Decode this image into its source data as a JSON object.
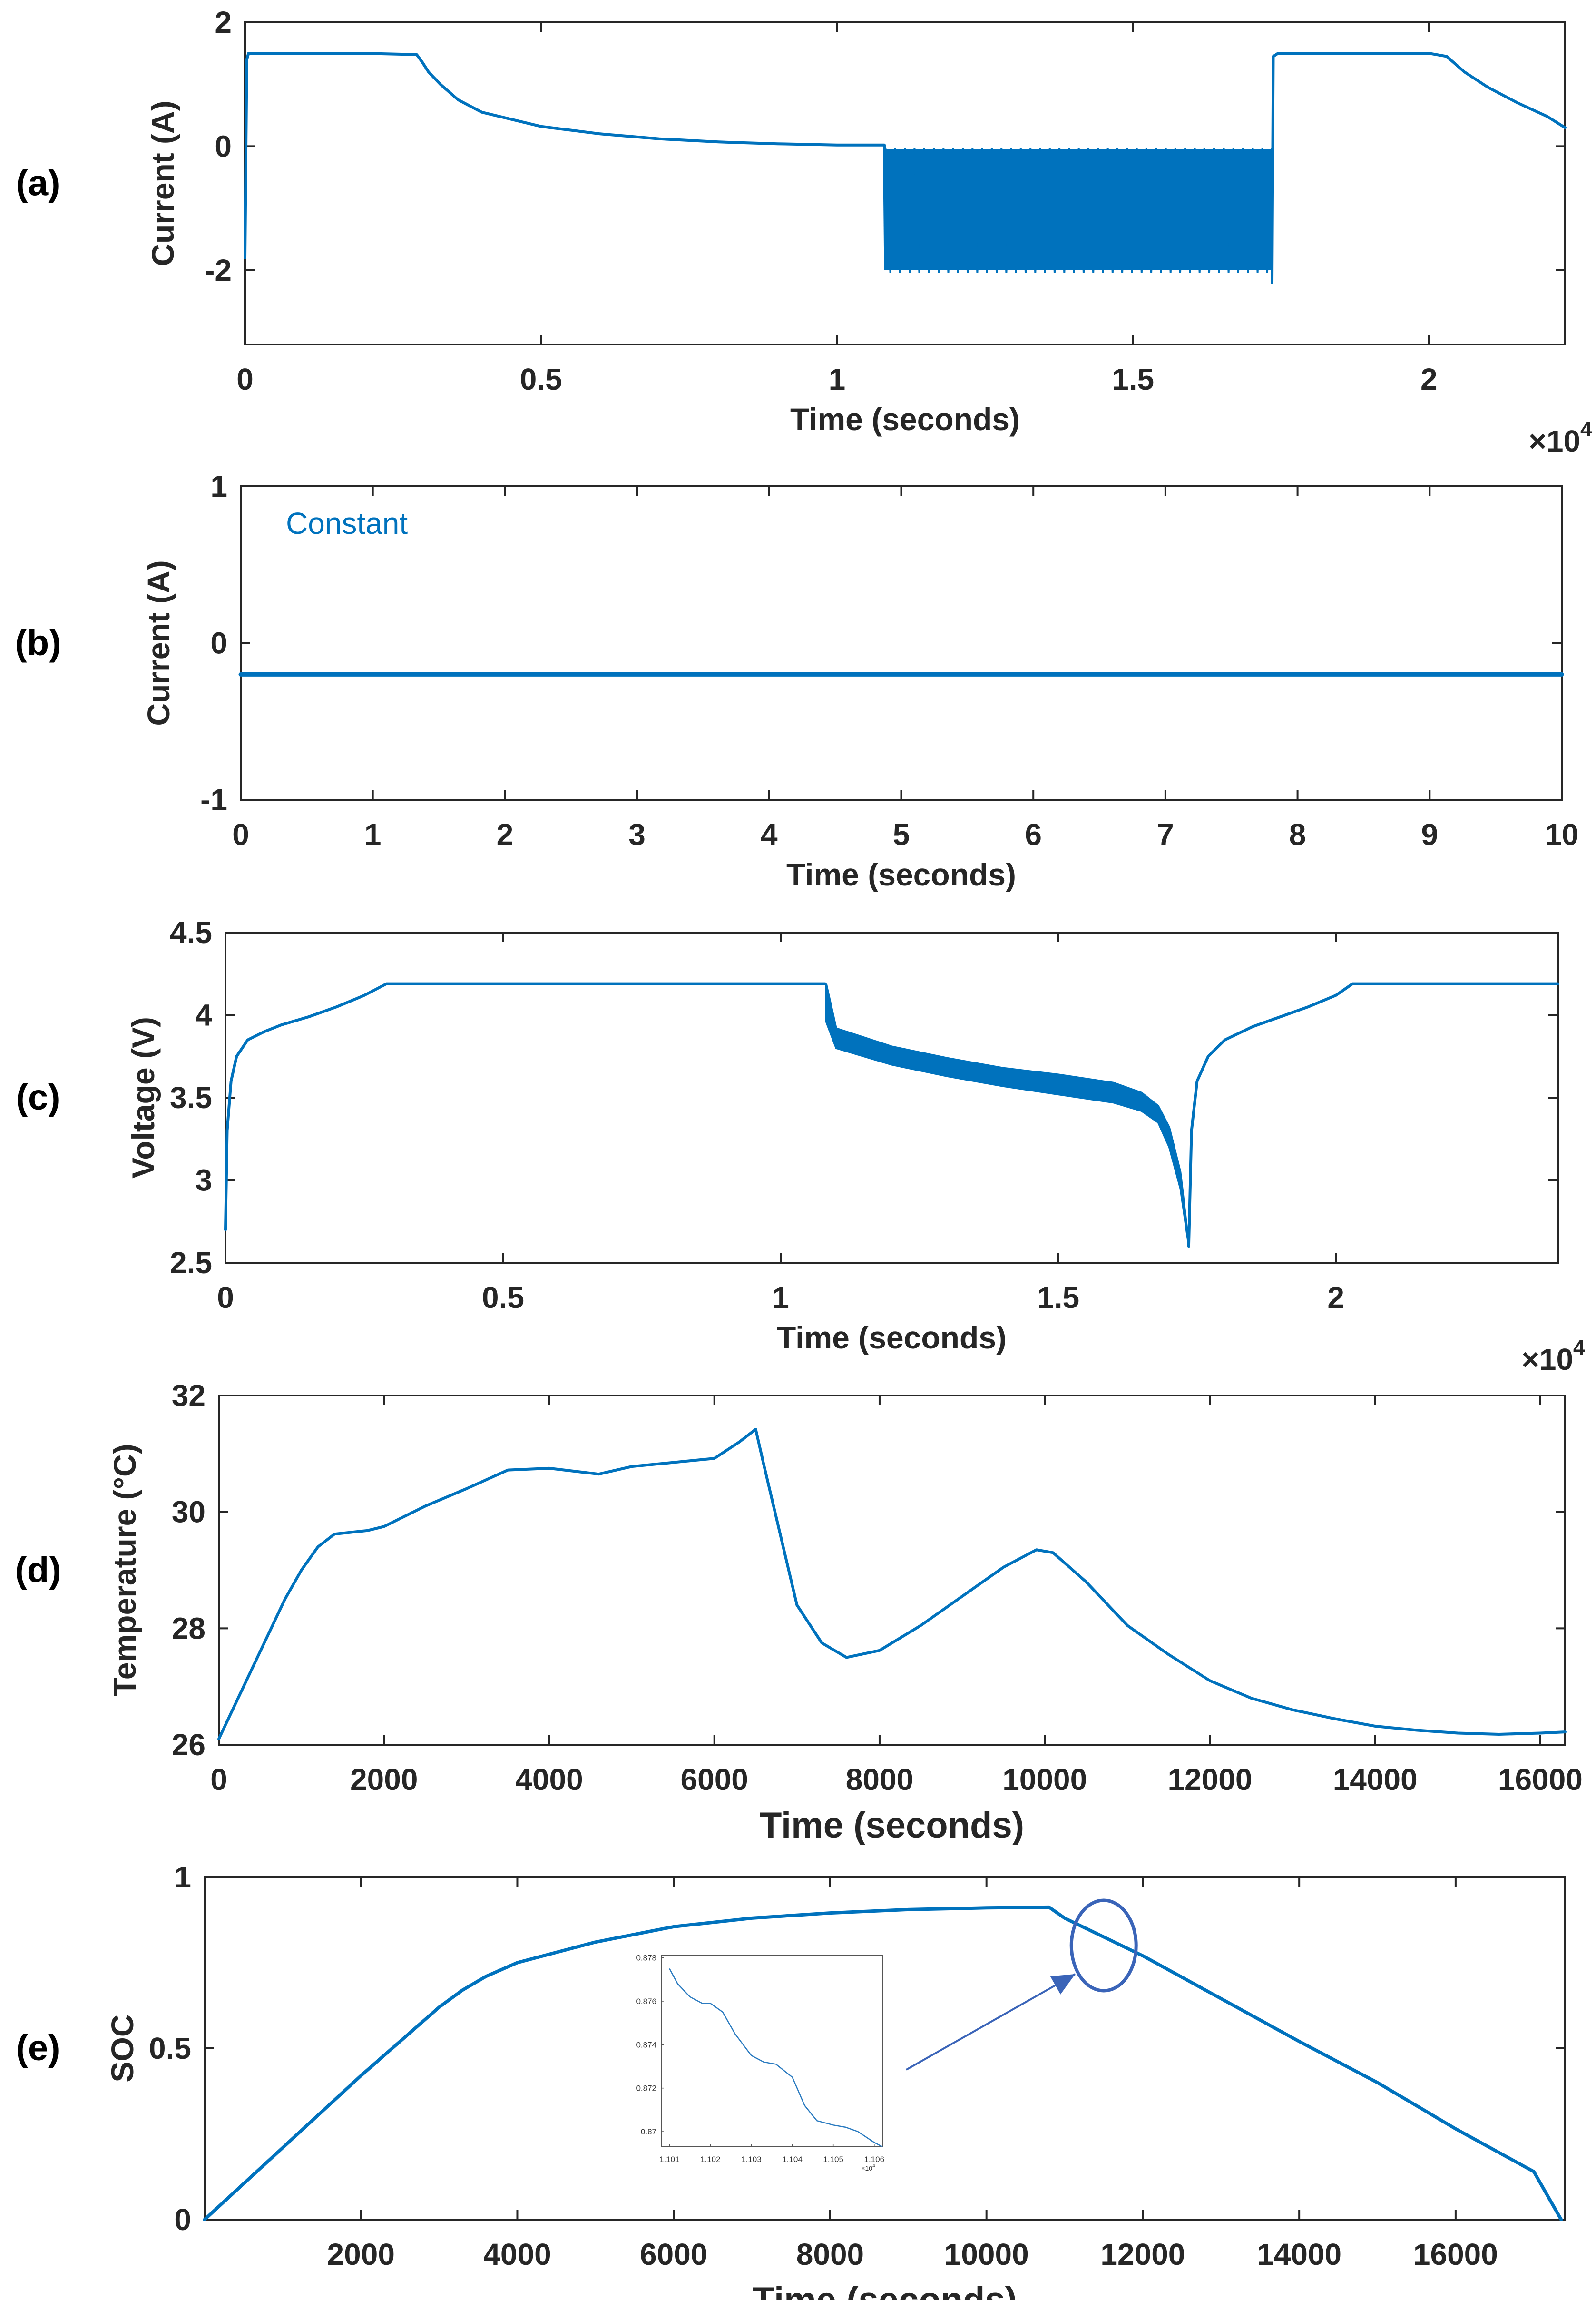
{
  "colors": {
    "series": "#0072BD",
    "axis": "#262626",
    "inset_series": "#2b7bc0",
    "annotation": "#3a64b8"
  },
  "chart_data": [
    {
      "id": "a",
      "panel_label": "(a)",
      "type": "line",
      "xlabel": "Time (seconds)",
      "ylabel": "Current (A)",
      "x_exponent": "×10^4",
      "x_exponent_base": "×10",
      "x_exponent_power": "4",
      "xlim": [
        0,
        2.23
      ],
      "ylim": [
        -3.2,
        2
      ],
      "xticks": [
        0,
        0.5,
        1,
        1.5,
        2
      ],
      "xtick_labels": [
        "0",
        "0.5",
        "1",
        "1.5",
        "2"
      ],
      "yticks": [
        -2,
        0,
        2
      ],
      "ytick_labels": [
        "-2",
        "0",
        "2"
      ],
      "series": [
        {
          "name": "current",
          "x": [
            0,
            0.003,
            0.006,
            0.01,
            0.1,
            0.2,
            0.29,
            0.3,
            0.31,
            0.33,
            0.36,
            0.4,
            0.5,
            0.6,
            0.7,
            0.8,
            0.9,
            1.0,
            1.08
          ],
          "y": [
            -1.8,
            1.4,
            1.5,
            1.5,
            1.5,
            1.5,
            1.48,
            1.35,
            1.2,
            1.0,
            0.75,
            0.55,
            0.32,
            0.2,
            0.12,
            0.07,
            0.04,
            0.02,
            0.02
          ]
        },
        {
          "name": "current-tail",
          "x": [
            1.735,
            1.737,
            1.745,
            1.8,
            1.9,
            2.0,
            2.03,
            2.06,
            2.1,
            2.15,
            2.2,
            2.23
          ],
          "y": [
            -2.2,
            1.45,
            1.5,
            1.5,
            1.5,
            1.5,
            1.45,
            1.2,
            0.95,
            0.7,
            0.48,
            0.3
          ]
        }
      ],
      "band": {
        "x_start": 1.082,
        "x_end": 1.735,
        "y_low": -2.0,
        "y_high": -0.05,
        "oscillation_cycles": 40
      }
    },
    {
      "id": "b",
      "panel_label": "(b)",
      "type": "line",
      "xlabel": "Time (seconds)",
      "ylabel": "Current (A)",
      "xlim": [
        0,
        10
      ],
      "ylim": [
        -1,
        1
      ],
      "xticks": [
        0,
        1,
        2,
        3,
        4,
        5,
        6,
        7,
        8,
        9,
        10
      ],
      "xtick_labels": [
        "0",
        "1",
        "2",
        "3",
        "4",
        "5",
        "6",
        "7",
        "8",
        "9",
        "10"
      ],
      "yticks": [
        -1,
        0,
        1
      ],
      "ytick_labels": [
        "-1",
        "0",
        "1"
      ],
      "annotation": "Constant",
      "series": [
        {
          "name": "constant-current",
          "x": [
            0,
            10
          ],
          "y": [
            -0.2,
            -0.2
          ]
        }
      ]
    },
    {
      "id": "c",
      "panel_label": "(c)",
      "type": "line",
      "xlabel": "Time (seconds)",
      "ylabel": "Voltage (V)",
      "x_exponent": "×10^4",
      "x_exponent_base": "×10",
      "x_exponent_power": "4",
      "xlim": [
        0,
        2.4
      ],
      "ylim": [
        2.5,
        4.5
      ],
      "xticks": [
        0,
        0.5,
        1,
        1.5,
        2
      ],
      "xtick_labels": [
        "0",
        "0.5",
        "1",
        "1.5",
        "2"
      ],
      "yticks": [
        2.5,
        3,
        3.5,
        4,
        4.5
      ],
      "ytick_labels": [
        "2.5",
        "3",
        "3.5",
        "4",
        "4.5"
      ],
      "series": [
        {
          "name": "voltage-charge",
          "x": [
            0,
            0.003,
            0.01,
            0.02,
            0.04,
            0.07,
            0.1,
            0.15,
            0.2,
            0.25,
            0.29,
            0.3,
            0.5,
            0.8,
            1.08
          ],
          "y": [
            2.7,
            3.3,
            3.6,
            3.75,
            3.85,
            3.9,
            3.94,
            3.99,
            4.05,
            4.12,
            4.19,
            4.19,
            4.19,
            4.19,
            4.19
          ]
        },
        {
          "name": "voltage-recharge",
          "x": [
            1.735,
            1.74,
            1.75,
            1.77,
            1.8,
            1.85,
            1.9,
            1.95,
            2.0,
            2.03,
            2.05,
            2.1,
            2.2,
            2.4
          ],
          "y": [
            2.6,
            3.3,
            3.6,
            3.75,
            3.85,
            3.93,
            3.99,
            4.05,
            4.12,
            4.19,
            4.19,
            4.19,
            4.19,
            4.19
          ]
        }
      ],
      "band": {
        "x": [
          1.082,
          1.1,
          1.2,
          1.3,
          1.4,
          1.5,
          1.6,
          1.65,
          1.68,
          1.7,
          1.72,
          1.735
        ],
        "y_high": [
          4.19,
          3.92,
          3.81,
          3.74,
          3.68,
          3.64,
          3.59,
          3.53,
          3.45,
          3.32,
          3.05,
          2.62
        ],
        "y_low": [
          3.96,
          3.8,
          3.7,
          3.63,
          3.57,
          3.52,
          3.47,
          3.42,
          3.35,
          3.2,
          2.95,
          2.6
        ],
        "oscillation_cycles": 40
      }
    },
    {
      "id": "d",
      "panel_label": "(d)",
      "type": "line",
      "xlabel": "Time (seconds)",
      "ylabel": "Temperature (°C)",
      "xlim": [
        0,
        16300
      ],
      "ylim": [
        26,
        32
      ],
      "xticks": [
        0,
        2000,
        4000,
        6000,
        8000,
        10000,
        12000,
        14000,
        16000
      ],
      "xtick_labels": [
        "0",
        "2000",
        "4000",
        "6000",
        "8000",
        "10000",
        "12000",
        "14000",
        "16000"
      ],
      "yticks": [
        26,
        28,
        30,
        32
      ],
      "ytick_labels": [
        "26",
        "28",
        "30",
        "32"
      ],
      "series": [
        {
          "name": "temperature",
          "x": [
            0,
            200,
            400,
            600,
            800,
            1000,
            1200,
            1400,
            1600,
            1800,
            2000,
            2500,
            3000,
            3500,
            4000,
            4600,
            5000,
            5500,
            6000,
            6300,
            6500,
            6600,
            6800,
            7000,
            7300,
            7600,
            8000,
            8500,
            9000,
            9500,
            9900,
            10100,
            10500,
            11000,
            11500,
            12000,
            12500,
            13000,
            13500,
            14000,
            14500,
            15000,
            15500,
            16000,
            16300
          ],
          "y": [
            26.1,
            26.7,
            27.3,
            27.9,
            28.5,
            29.0,
            29.4,
            29.62,
            29.65,
            29.68,
            29.75,
            30.1,
            30.4,
            30.72,
            30.75,
            30.65,
            30.78,
            30.85,
            30.92,
            31.2,
            31.42,
            30.8,
            29.6,
            28.4,
            27.75,
            27.5,
            27.62,
            28.05,
            28.55,
            29.05,
            29.35,
            29.3,
            28.8,
            28.05,
            27.55,
            27.1,
            26.8,
            26.6,
            26.45,
            26.32,
            26.25,
            26.2,
            26.18,
            26.2,
            26.22
          ]
        }
      ]
    },
    {
      "id": "e",
      "panel_label": "(e)",
      "type": "line",
      "xlabel": "Time (seconds)",
      "ylabel": "SOC",
      "xlim": [
        0,
        17400
      ],
      "ylim": [
        0,
        1
      ],
      "xticks": [
        2000,
        4000,
        6000,
        8000,
        10000,
        12000,
        14000,
        16000
      ],
      "xtick_labels": [
        "2000",
        "4000",
        "6000",
        "8000",
        "10000",
        "12000",
        "14000",
        "16000"
      ],
      "yticks": [
        0,
        0.5,
        1
      ],
      "ytick_labels": [
        "0",
        "0.5",
        "1"
      ],
      "series": [
        {
          "name": "soc",
          "x": [
            0,
            1000,
            2000,
            3000,
            3300,
            3600,
            4000,
            5000,
            6000,
            7000,
            8000,
            9000,
            10000,
            10800,
            11000,
            12000,
            13000,
            14000,
            15000,
            16000,
            17000,
            17350
          ],
          "y": [
            0,
            0.21,
            0.42,
            0.62,
            0.67,
            0.71,
            0.75,
            0.81,
            0.855,
            0.88,
            0.895,
            0.905,
            0.91,
            0.912,
            0.88,
            0.77,
            0.645,
            0.52,
            0.4,
            0.265,
            0.14,
            0.0
          ]
        }
      ],
      "highlight": {
        "x": 11500,
        "y": 0.8
      },
      "inset": {
        "xlim": [
          1.1008,
          1.1062
        ],
        "ylim": [
          0.8693,
          0.8781
        ],
        "x_exponent": "×10^4",
        "x_exponent_base": "×10",
        "x_exponent_power": "4",
        "xticks": [
          1.101,
          1.102,
          1.103,
          1.104,
          1.105,
          1.106
        ],
        "xtick_labels": [
          "1.101",
          "1.102",
          "1.103",
          "1.104",
          "1.105",
          "1.106"
        ],
        "yticks": [
          0.87,
          0.872,
          0.874,
          0.876,
          0.878
        ],
        "ytick_labels": [
          "0.87",
          "0.872",
          "0.874",
          "0.876",
          "0.878"
        ],
        "series": [
          {
            "name": "soc-zoom",
            "x": [
              1.101,
              1.1012,
              1.1015,
              1.1018,
              1.102,
              1.1023,
              1.1026,
              1.103,
              1.1033,
              1.1036,
              1.104,
              1.1043,
              1.1046,
              1.105,
              1.1053,
              1.1056,
              1.106,
              1.1062
            ],
            "y": [
              0.8775,
              0.8768,
              0.8762,
              0.8759,
              0.8759,
              0.8755,
              0.8745,
              0.8735,
              0.8732,
              0.8731,
              0.8725,
              0.8712,
              0.8705,
              0.8703,
              0.8702,
              0.87,
              0.8695,
              0.8693
            ]
          }
        ]
      }
    }
  ]
}
